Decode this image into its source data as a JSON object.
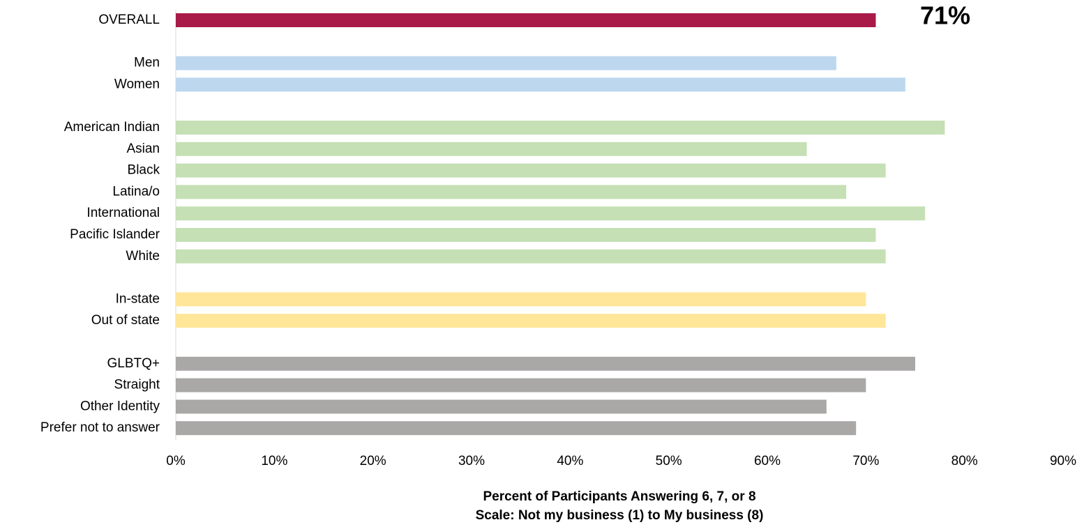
{
  "chart_data": {
    "type": "bar",
    "orientation": "horizontal",
    "groups": [
      {
        "color": "#a91a48",
        "categories": [
          "OVERALL"
        ],
        "values": [
          71
        ],
        "value_labels": [
          "71%"
        ]
      },
      {
        "color": "#bdd7ee",
        "categories": [
          "Men",
          "Women"
        ],
        "values": [
          67,
          74
        ]
      },
      {
        "color": "#c5e0b4",
        "categories": [
          "American Indian",
          "Asian",
          "Black",
          "Latina/o",
          "International",
          "Pacific Islander",
          "White"
        ],
        "values": [
          78,
          64,
          72,
          68,
          76,
          71,
          72
        ]
      },
      {
        "color": "#ffe699",
        "categories": [
          "In-state",
          "Out of state"
        ],
        "values": [
          70,
          72
        ]
      },
      {
        "color": "#aaa7a7",
        "categories": [
          "GLBTQ+",
          "Straight",
          "Other Identity",
          "Prefer not to answer"
        ],
        "values": [
          75,
          70,
          66,
          69
        ]
      }
    ],
    "xlim": [
      0,
      90
    ],
    "xticks": [
      {
        "value": 0,
        "label": "0%"
      },
      {
        "value": 10,
        "label": "10%"
      },
      {
        "value": 20,
        "label": "20%"
      },
      {
        "value": 30,
        "label": "30%"
      },
      {
        "value": 40,
        "label": "40%"
      },
      {
        "value": 50,
        "label": "50%"
      },
      {
        "value": 60,
        "label": "60%"
      },
      {
        "value": 70,
        "label": "70%"
      },
      {
        "value": 80,
        "label": "80%"
      },
      {
        "value": 90,
        "label": "90%"
      }
    ],
    "xlabel": [
      "Percent of Participants Answering 6, 7, or 8",
      "Scale: Not my business (1) to My business (8)"
    ]
  }
}
